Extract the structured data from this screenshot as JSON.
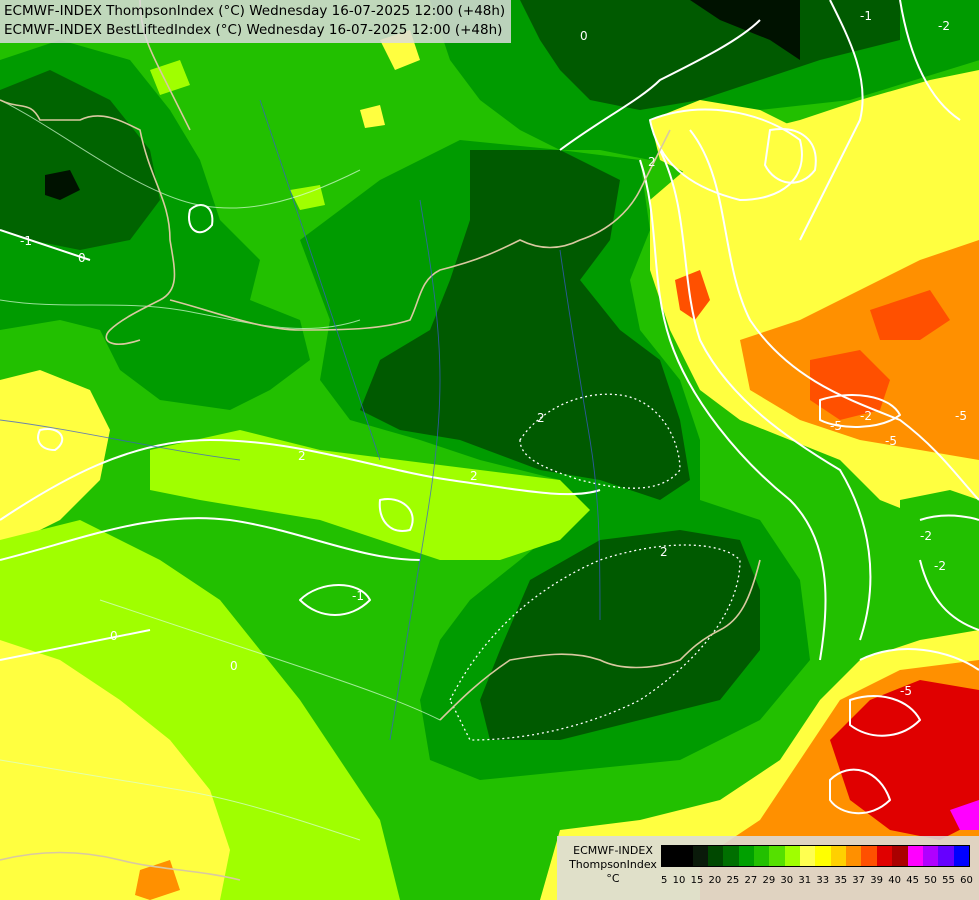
{
  "title": {
    "line1": "ECMWF-INDEX ThompsonIndex (°C) Wednesday 16-07-2025 12:00 (+48h)",
    "line2": "ECMWF-INDEX BestLiftedIndex (°C) Wednesday 16-07-2025 12:00 (+48h)"
  },
  "legend": {
    "line1": "ECMWF-INDEX",
    "line2": "ThompsonIndex",
    "line3": "°C",
    "values": [
      "5",
      "10",
      "15",
      "20",
      "25",
      "27",
      "29",
      "30",
      "31",
      "33",
      "35",
      "37",
      "39",
      "40",
      "45",
      "50",
      "55",
      "60"
    ],
    "colors": [
      "#000000",
      "#000000",
      "#0a1a0a",
      "#004800",
      "#006f00",
      "#00a000",
      "#22c000",
      "#55e000",
      "#a0ff00",
      "#ffff50",
      "#ffff00",
      "#ffd000",
      "#ff9000",
      "#ff5000",
      "#e00000",
      "#aa0000",
      "#ff00ff",
      "#b000ff",
      "#6600ff",
      "#0000ff"
    ]
  },
  "contour_labels": [
    "-1",
    "0",
    "2",
    "-1",
    "2",
    "-2",
    "2",
    "2",
    "0",
    "0",
    "-1",
    "-2",
    "2",
    "-2",
    "-5",
    "0",
    "-5",
    "-5",
    "-2",
    "-5"
  ],
  "colors": {
    "bright_green": "#22c000",
    "mid_green": "#009b00",
    "dark_green": "#005a00",
    "yellow_green": "#a0ff00",
    "yellow": "#ffff40",
    "orange": "#ff9000",
    "red": "#e00000",
    "magenta": "#ff00ff"
  }
}
